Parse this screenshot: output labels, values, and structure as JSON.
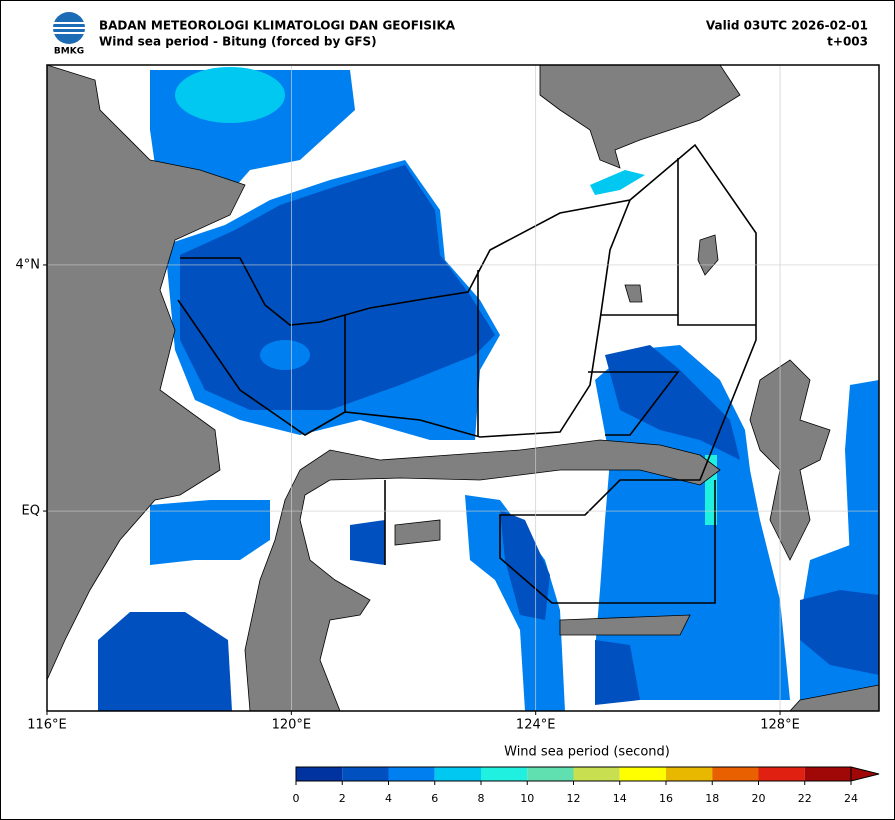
{
  "header": {
    "agency": "BADAN METEOROLOGI KLIMATOLOGI DAN GEOFISIKA",
    "title": "Wind sea period - Bitung (forced by GFS)",
    "valid": "Valid 03UTC 2026-02-01",
    "lead": "t+003",
    "logo_text": "BMKG"
  },
  "map": {
    "lon_range": [
      116,
      129.62
    ],
    "lat_range": [
      -3.25,
      7.25
    ],
    "lon_ticks": [
      {
        "value": 116,
        "label": "116°E"
      },
      {
        "value": 120,
        "label": "120°E"
      },
      {
        "value": 124,
        "label": "124°E"
      },
      {
        "value": 128,
        "label": "128°E"
      }
    ],
    "lat_ticks": [
      {
        "value": 4,
        "label": "4°N"
      },
      {
        "value": 0,
        "label": "EQ"
      }
    ],
    "grid": true
  },
  "colorbar": {
    "label": "Wind sea period (second)",
    "ticks": [
      0,
      2,
      4,
      6,
      8,
      10,
      12,
      14,
      16,
      18,
      20,
      22,
      24
    ],
    "colors": [
      "#0033a0",
      "#0050c0",
      "#0080f0",
      "#00c8f0",
      "#20f0e0",
      "#60e0b0",
      "#c8e050",
      "#ffff00",
      "#e8b800",
      "#e86000",
      "#e02010",
      "#a00808"
    ]
  }
}
